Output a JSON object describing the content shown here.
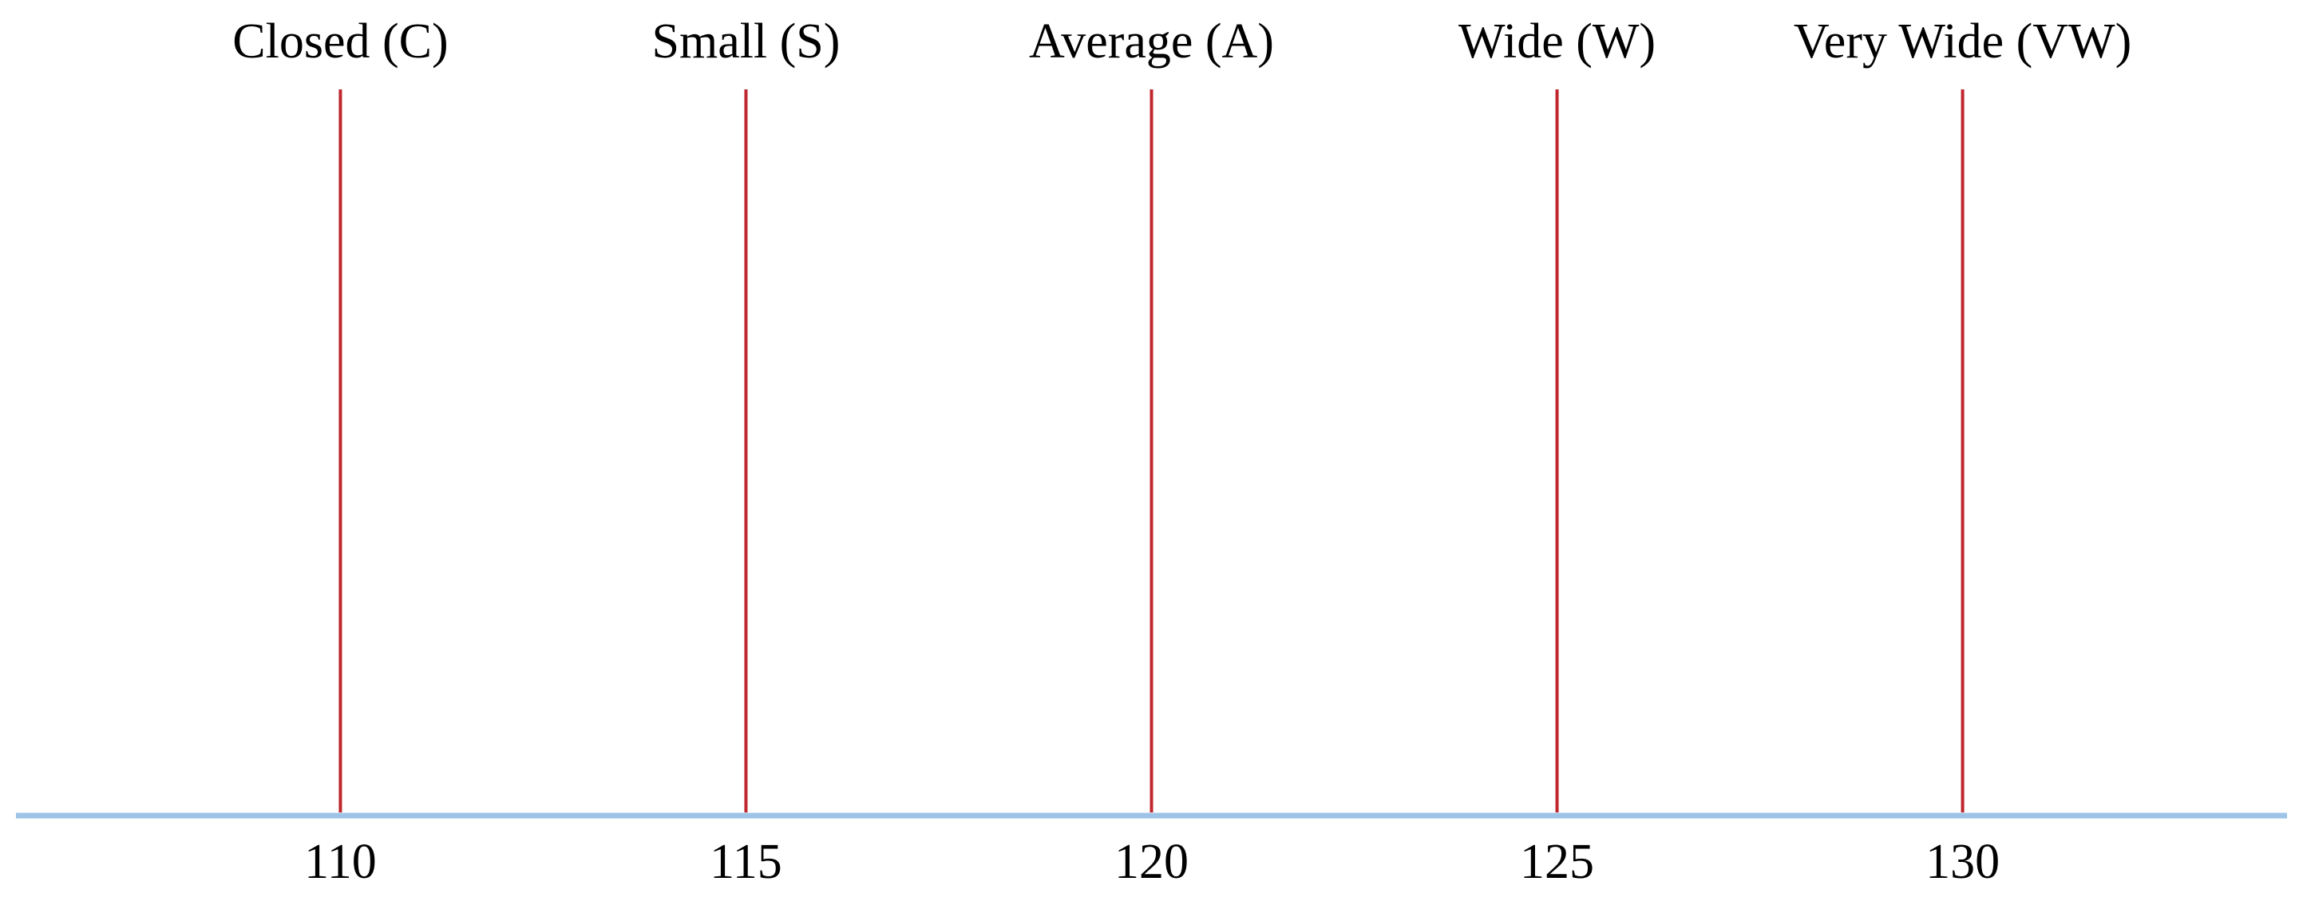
{
  "chart_data": {
    "type": "scatter",
    "title": "",
    "xlabel": "",
    "ylabel": "",
    "x": [
      110,
      115,
      120,
      125,
      130
    ],
    "categories": [
      "Closed (C)",
      "Small (S)",
      "Average (A)",
      "Wide (W)",
      "Very Wide (VW)"
    ],
    "xlim": [
      106,
      134
    ],
    "xticks": [
      110,
      115,
      120,
      125,
      130
    ],
    "grid": false,
    "legend": "none",
    "colors": {
      "marker_line": "#c0262d",
      "axis_line": "#9dc3e6",
      "text": "#000000"
    }
  }
}
